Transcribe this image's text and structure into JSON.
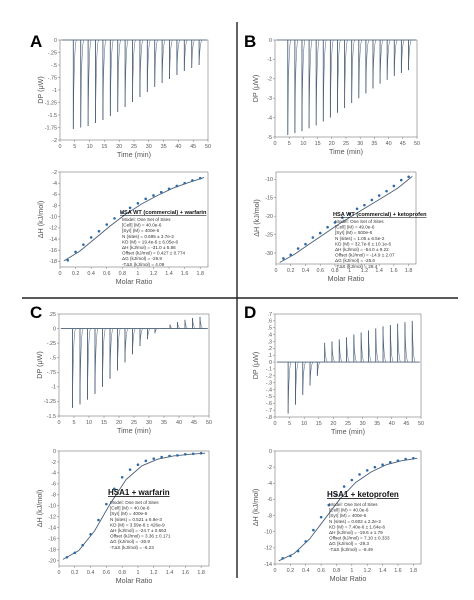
{
  "figure": {
    "background": "#ffffff",
    "line_color": "#4a5f78",
    "marker_color": "#2f6aa8"
  },
  "chart_data": [
    {
      "panel": "A",
      "type": "line",
      "plot": "raw",
      "xlabel": "Time (min)",
      "ylabel": "DP (μW)",
      "xlim": [
        0,
        50
      ],
      "ylim": [
        -2,
        0
      ],
      "xticks": [
        0,
        5,
        10,
        15,
        20,
        25,
        30,
        35,
        40,
        45,
        50
      ],
      "yticks": [
        0,
        -0.25,
        -0.5,
        -0.75,
        -1,
        -1.25,
        -1.5,
        -1.75,
        -2
      ],
      "ytick_labels": [
        "0",
        "-.25",
        "-.5",
        "-.75",
        "-1",
        "-1.25",
        "-1.5",
        "-1.75",
        "-2"
      ],
      "injection_times": [
        4.5,
        7,
        9.5,
        12,
        14.5,
        17,
        19.5,
        22,
        24.5,
        27,
        29.5,
        32,
        34.5,
        37,
        39.5,
        42,
        44.5,
        47
      ],
      "peak_heights": [
        -1.78,
        -1.75,
        -1.72,
        -1.66,
        -1.6,
        -1.52,
        -1.44,
        -1.34,
        -1.24,
        -1.14,
        -1.04,
        -0.94,
        -0.86,
        -0.78,
        -0.7,
        -0.62,
        -0.56,
        -0.5
      ]
    },
    {
      "panel": "A",
      "type": "scatter",
      "plot": "fit",
      "xlabel": "Molar Ratio",
      "ylabel": "ΔH (kJ/mol)",
      "xlim": [
        0,
        1.9
      ],
      "ylim": [
        -19,
        -2
      ],
      "xticks": [
        0,
        0.2,
        0.4,
        0.6,
        0.8,
        1,
        1.2,
        1.4,
        1.6,
        1.8
      ],
      "xtick_labels": [
        "0",
        "0.2",
        "0.4",
        "0.6",
        "0.8",
        "1",
        "1.2",
        "1.4",
        "1.6",
        "1.8"
      ],
      "yticks": [
        -2,
        -4,
        -6,
        -8,
        -10,
        -12,
        -14,
        -16,
        -18
      ],
      "x": [
        0.1,
        0.2,
        0.3,
        0.4,
        0.5,
        0.6,
        0.7,
        0.8,
        0.9,
        1.0,
        1.1,
        1.2,
        1.3,
        1.4,
        1.5,
        1.6,
        1.7,
        1.8
      ],
      "y": [
        -17.8,
        -16.3,
        -15,
        -13.7,
        -12.6,
        -11.4,
        -10.3,
        -9.3,
        -8.4,
        -7.6,
        -6.8,
        -6.2,
        -5.6,
        -5,
        -4.5,
        -4,
        -3.5,
        -3.1
      ],
      "fit": [
        [
          0.05,
          -17.9
        ],
        [
          0.25,
          -16.2
        ],
        [
          0.45,
          -13.9
        ],
        [
          0.65,
          -11.6
        ],
        [
          0.85,
          -9.5
        ],
        [
          1.05,
          -7.7
        ],
        [
          1.25,
          -6.2
        ],
        [
          1.45,
          -4.9
        ],
        [
          1.65,
          -3.9
        ],
        [
          1.85,
          -3.0
        ]
      ],
      "box": {
        "title": "HSA WT (commercial) + warfarin",
        "lines": [
          "Model: One Set of Sites",
          "[Cell] (M) = 40.0e-6",
          "[Syr] (M) = 400e-6",
          "N (sites) = 0.695 ± 3.7e-2",
          "KD (M) = 19.4e-6 ± 6.05e-6",
          "ΔH (kJ/mol) = -31.0 ± 5.86",
          "Offset (kJ/mol) = 0.427 ± 0.774",
          "ΔG (kJ/mol) = -26.9",
          "-TΔS (kJ/mol) = 4.09"
        ]
      }
    },
    {
      "panel": "B",
      "type": "line",
      "plot": "raw",
      "xlabel": "Time (min)",
      "ylabel": "DP (μW)",
      "xlim": [
        0,
        50
      ],
      "ylim": [
        -5,
        0
      ],
      "xticks": [
        0,
        5,
        10,
        15,
        20,
        25,
        30,
        35,
        40,
        45,
        50
      ],
      "yticks": [
        0,
        -1,
        -2,
        -3,
        -4,
        -5
      ],
      "injection_times": [
        4.5,
        7,
        9.5,
        12,
        14.5,
        17,
        19.5,
        22,
        24.5,
        27,
        29.5,
        32,
        34.5,
        37,
        39.5,
        42,
        44.5,
        47
      ],
      "peak_heights": [
        -4.9,
        -4.8,
        -4.7,
        -4.55,
        -4.4,
        -4.2,
        -4.0,
        -3.75,
        -3.5,
        -3.25,
        -3.0,
        -2.75,
        -2.5,
        -2.25,
        -2.05,
        -1.85,
        -1.7,
        -1.55
      ]
    },
    {
      "panel": "B",
      "type": "scatter",
      "plot": "fit",
      "xlabel": "Molar Ratio",
      "ylabel": "ΔH (kJ/mol)",
      "xlim": [
        0,
        1.9
      ],
      "ylim": [
        -33,
        -8
      ],
      "xticks": [
        0,
        0.2,
        0.4,
        0.6,
        0.8,
        1,
        1.2,
        1.4,
        1.6,
        1.8
      ],
      "xtick_labels": [
        "0",
        "0.2",
        "0.4",
        "0.6",
        "0.8",
        "1",
        "1.2",
        "1.4",
        "1.6",
        "1.8"
      ],
      "yticks": [
        -10,
        -15,
        -20,
        -25,
        -30
      ],
      "x": [
        0.1,
        0.2,
        0.3,
        0.4,
        0.5,
        0.6,
        0.7,
        0.8,
        0.9,
        1.0,
        1.1,
        1.2,
        1.3,
        1.4,
        1.5,
        1.6,
        1.7,
        1.8
      ],
      "y": [
        -31.5,
        -30.5,
        -28.8,
        -27.6,
        -25.8,
        -24.6,
        -23,
        -21.7,
        -20.4,
        -19.4,
        -18,
        -17,
        -15.6,
        -14.4,
        -13.2,
        -11.8,
        -10.2,
        -9.3
      ],
      "fit": [
        [
          0.05,
          -32.6
        ],
        [
          0.25,
          -30.4
        ],
        [
          0.45,
          -27.6
        ],
        [
          0.65,
          -24.9
        ],
        [
          0.85,
          -22.2
        ],
        [
          1.05,
          -19.7
        ],
        [
          1.25,
          -17.3
        ],
        [
          1.45,
          -14.9
        ],
        [
          1.65,
          -12.4
        ],
        [
          1.85,
          -9.2
        ]
      ],
      "box": {
        "title": "HSA WT (commercial) + ketoprofen",
        "lines": [
          "Model: One Set of Sites",
          "[Cell] (M) = 49.0e-6",
          "[Syr] (M) = 500e-6",
          "N (sites) = 1.05 ± 6.5e-2",
          "KD (M) = 32.7e-6 ± 10.1e-6",
          "ΔH (kJ/mol) = -54.0 ± 9.22",
          "Offset (kJ/mol) = -14.9 ± 2.07",
          "ΔG (kJ/mol) = -25.6",
          "-TΔS (kJ/mol) = 28.4"
        ]
      }
    },
    {
      "panel": "C",
      "type": "line",
      "plot": "raw",
      "xlabel": "Time (min)",
      "ylabel": "DP (μW)",
      "xlim": [
        0,
        50
      ],
      "ylim": [
        -1.5,
        0.25
      ],
      "xticks": [
        0,
        5,
        10,
        15,
        20,
        25,
        30,
        35,
        40,
        45,
        50
      ],
      "yticks": [
        0.25,
        0,
        -0.25,
        -0.5,
        -0.75,
        -1,
        -1.25,
        -1.5
      ],
      "ytick_labels": [
        ".25",
        "0",
        "-.25",
        "-.5",
        "-.75",
        "-1",
        "-1.25",
        "-1.5"
      ],
      "injection_times": [
        4.5,
        7,
        9.5,
        12,
        14.5,
        17,
        19.5,
        22,
        24.5,
        27,
        29.5,
        32,
        34.5,
        37,
        39.5,
        42,
        44.5,
        47
      ],
      "peak_heights": [
        -1.36,
        -1.3,
        -1.22,
        -1.12,
        -1.0,
        -0.86,
        -0.72,
        -0.58,
        -0.44,
        -0.3,
        -0.18,
        -0.08,
        0.0,
        0.07,
        0.11,
        0.15,
        0.18,
        0.2
      ]
    },
    {
      "panel": "C",
      "type": "scatter",
      "plot": "fit",
      "xlabel": "Molar Ratio",
      "ylabel": "ΔH (kJ/mol)",
      "xlim": [
        0,
        1.9
      ],
      "ylim": [
        -21,
        0
      ],
      "xticks": [
        0,
        0.2,
        0.4,
        0.6,
        0.8,
        1,
        1.2,
        1.4,
        1.6,
        1.8
      ],
      "xtick_labels": [
        "0",
        "0.2",
        "0.4",
        "0.6",
        "0.8",
        "1",
        "1.2",
        "1.4",
        "1.6",
        "1.8"
      ],
      "yticks": [
        0,
        -2,
        -4,
        -6,
        -8,
        -10,
        -12,
        -14,
        -16,
        -18,
        -20
      ],
      "x": [
        0.1,
        0.2,
        0.3,
        0.4,
        0.5,
        0.6,
        0.7,
        0.8,
        0.9,
        1.0,
        1.1,
        1.2,
        1.3,
        1.4,
        1.5,
        1.6,
        1.7,
        1.8
      ],
      "y": [
        -19.4,
        -18.6,
        -17.2,
        -15.2,
        -12.6,
        -9.7,
        -6.9,
        -4.8,
        -3.4,
        -2.5,
        -1.8,
        -1.4,
        -1.1,
        -0.9,
        -0.8,
        -0.6,
        -0.5,
        -0.4
      ],
      "fit": [
        [
          0.05,
          -19.8
        ],
        [
          0.25,
          -18.2
        ],
        [
          0.45,
          -14.6
        ],
        [
          0.65,
          -9.6
        ],
        [
          0.85,
          -5.2
        ],
        [
          1.05,
          -2.7
        ],
        [
          1.25,
          -1.5
        ],
        [
          1.45,
          -0.9
        ],
        [
          1.65,
          -0.6
        ],
        [
          1.85,
          -0.4
        ]
      ],
      "box": {
        "title": "HSA1 + warfarin",
        "lines": [
          "Model: One Set of Sites",
          "[Cell] (M) = 40.0e-6",
          "[Syr] (M) = 400e-6",
          "N (sites) = 0.521 ± 6.9e-3",
          "KD (M) = 3.59e-6 ± 426e-9",
          "ΔH (kJ/mol) = -24.7 ± 0.663",
          "Offset (kJ/mol) = 3.36 ± 0.171",
          "ΔG (kJ/mol) = -30.9",
          "-TΔS (kJ/mol) = -6.23"
        ]
      }
    },
    {
      "panel": "D",
      "type": "line",
      "plot": "raw",
      "xlabel": "Time (min)",
      "ylabel": "DP (μW)",
      "xlim": [
        0,
        50
      ],
      "ylim": [
        -0.8,
        0.7
      ],
      "xticks": [
        0,
        5,
        10,
        15,
        20,
        25,
        30,
        35,
        40,
        45,
        50
      ],
      "yticks": [
        0.7,
        0.6,
        0.5,
        0.4,
        0.3,
        0.2,
        0.1,
        0,
        -0.1,
        -0.2,
        -0.3,
        -0.4,
        -0.5,
        -0.6,
        -0.7,
        -0.8
      ],
      "ytick_labels": [
        ".7",
        ".6",
        ".5",
        ".4",
        ".3",
        ".2",
        ".1",
        "0",
        "-.1",
        "-.2",
        "-.3",
        "-.4",
        "-.5",
        "-.6",
        "-.7",
        "-.8"
      ],
      "injection_times": [
        4.5,
        7,
        9.5,
        12,
        14.5,
        17,
        19.5,
        22,
        24.5,
        27,
        29.5,
        32,
        34.5,
        37,
        39.5,
        42,
        44.5,
        47
      ],
      "peak_heights": [
        -0.75,
        -0.62,
        -0.48,
        -0.34,
        -0.2,
        0.28,
        0.3,
        0.33,
        0.36,
        0.4,
        0.43,
        0.46,
        0.49,
        0.52,
        0.54,
        0.56,
        0.58,
        0.6
      ]
    },
    {
      "panel": "D",
      "type": "scatter",
      "plot": "fit",
      "xlabel": "Molar Ratio",
      "ylabel": "ΔH (kJ/mol)",
      "xlim": [
        0,
        1.9
      ],
      "ylim": [
        -14,
        0
      ],
      "xticks": [
        0,
        0.2,
        0.4,
        0.6,
        0.8,
        1,
        1.2,
        1.4,
        1.6,
        1.8
      ],
      "xtick_labels": [
        "0",
        "0.2",
        "0.4",
        "0.6",
        "0.8",
        "1",
        "1.2",
        "1.4",
        "1.6",
        "1.8"
      ],
      "yticks": [
        0,
        -2,
        -4,
        -6,
        -8,
        -10,
        -12,
        -14
      ],
      "x": [
        0.1,
        0.2,
        0.3,
        0.4,
        0.5,
        0.6,
        0.7,
        0.8,
        0.9,
        1.0,
        1.1,
        1.2,
        1.3,
        1.4,
        1.5,
        1.6,
        1.7,
        1.8
      ],
      "y": [
        -13.3,
        -13,
        -12.4,
        -11.2,
        -9.8,
        -8.2,
        -6.7,
        -5.4,
        -4.4,
        -3.6,
        -2.9,
        -2.4,
        -2,
        -1.7,
        -1.4,
        -1.2,
        -1,
        -0.9
      ],
      "fit": [
        [
          0.05,
          -13.6
        ],
        [
          0.25,
          -12.7
        ],
        [
          0.45,
          -10.9
        ],
        [
          0.65,
          -8.4
        ],
        [
          0.85,
          -5.9
        ],
        [
          1.05,
          -3.9
        ],
        [
          1.25,
          -2.6
        ],
        [
          1.45,
          -1.7
        ],
        [
          1.65,
          -1.2
        ],
        [
          1.85,
          -0.9
        ]
      ],
      "box": {
        "title": "HSA1 + ketoprofen",
        "lines": [
          "Model: One Set of Sites",
          "[Cell] (M) = 40.0e-6",
          "[Syr] (M) = 400e-6",
          "N (sites) = 0.602 ± 2.2e-2",
          "KD (M) = 7.40e-6 ± 1.64e-6",
          "ΔH (kJ/mol) = -19.6 ± 1.79",
          "Offset (kJ/mol) = 7.10 ± 0.333",
          "ΔG (kJ/mol) = -29.3",
          "-TΔS (kJ/mol) = -9.49"
        ]
      }
    }
  ]
}
